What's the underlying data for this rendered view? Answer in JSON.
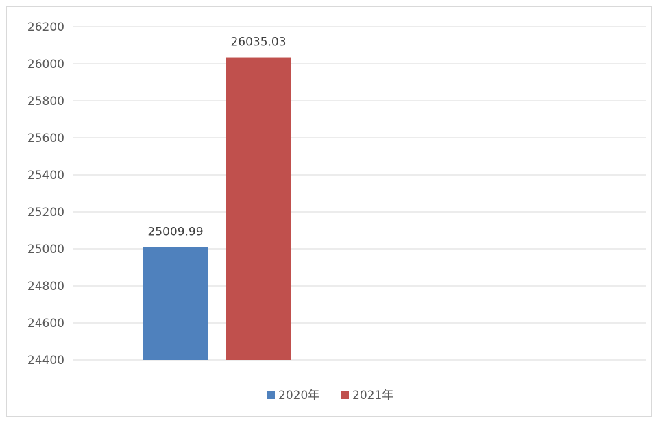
{
  "chart_data": {
    "type": "bar",
    "categories": [
      ""
    ],
    "series": [
      {
        "name": "2020年",
        "values": [
          25009.99
        ],
        "color": "#4f81bd"
      },
      {
        "name": "2021年",
        "values": [
          26035.03
        ],
        "color": "#c0504d"
      }
    ],
    "data_labels": [
      "25009.99",
      "26035.03"
    ],
    "ylim": [
      24400,
      26200
    ],
    "yticks": [
      24400,
      24600,
      24800,
      25000,
      25200,
      25400,
      25600,
      25800,
      26000,
      26200
    ],
    "grid": true,
    "legend_position": "bottom",
    "title": "",
    "xlabel": "",
    "ylabel": ""
  }
}
